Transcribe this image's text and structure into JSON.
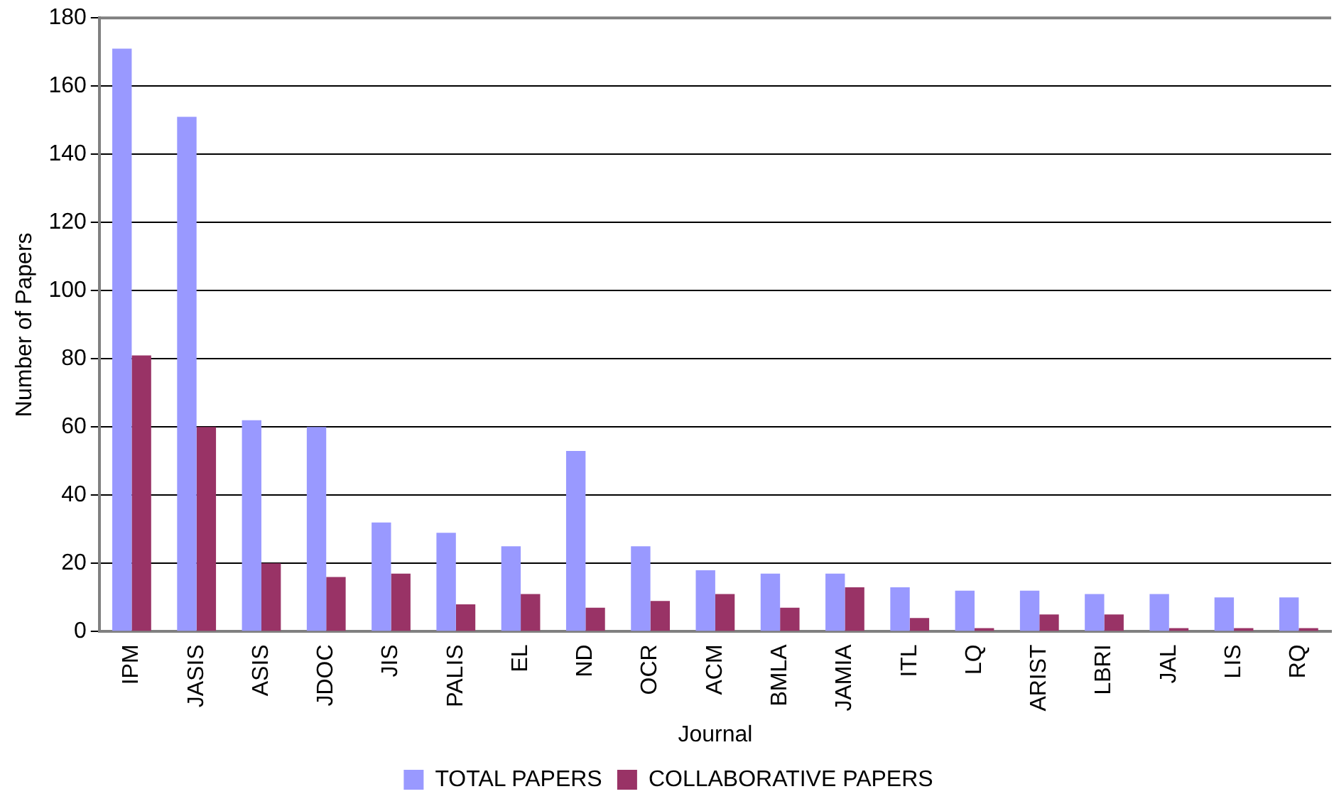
{
  "chart_data": {
    "type": "bar",
    "xlabel": "Journal",
    "ylabel": "Number of Papers",
    "categories": [
      "IPM",
      "JASIS",
      "ASIS",
      "JDOC",
      "JIS",
      "PALIS",
      "EL",
      "ND",
      "OCR",
      "ACM",
      "BMLA",
      "JAMIA",
      "ITL",
      "LQ",
      "ARIST",
      "LBRI",
      "JAL",
      "LIS",
      "RQ"
    ],
    "series": [
      {
        "name": "TOTAL PAPERS",
        "color": "#9999ff",
        "values": [
          171,
          151,
          62,
          60,
          32,
          29,
          25,
          53,
          25,
          18,
          17,
          17,
          13,
          12,
          12,
          11,
          11,
          10,
          10
        ]
      },
      {
        "name": "COLLABORATIVE PAPERS",
        "color": "#993366",
        "values": [
          81,
          60,
          20,
          16,
          17,
          8,
          11,
          7,
          9,
          11,
          7,
          13,
          4,
          1,
          5,
          5,
          1,
          1,
          1
        ]
      }
    ],
    "ylim": [
      0,
      180
    ],
    "yticks": [
      0,
      20,
      40,
      60,
      80,
      100,
      120,
      140,
      160,
      180
    ],
    "grid": "y",
    "legend": "bottom"
  }
}
